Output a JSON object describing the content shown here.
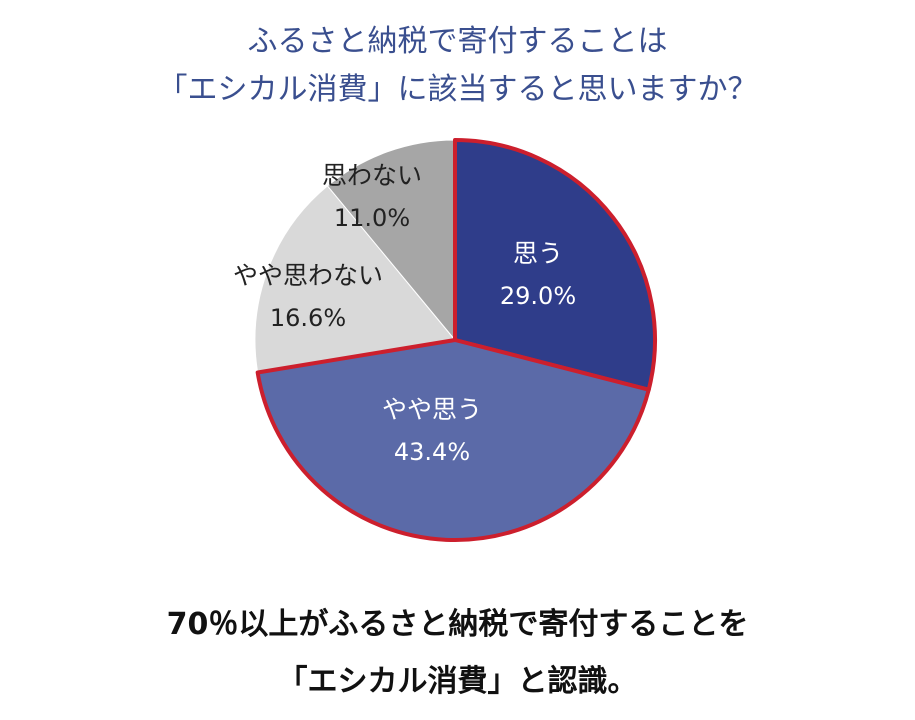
{
  "title": {
    "line1": "ふるさと納税で寄付することは",
    "line2": "「エシカル消費」に該当すると思いますか？"
  },
  "chart_data": {
    "type": "pie",
    "slices": [
      {
        "label": "思う",
        "value": 29.0,
        "value_label": "29.0%",
        "color": "#2f3d8a",
        "highlighted": true
      },
      {
        "label": "やや思う",
        "value": 43.4,
        "value_label": "43.4%",
        "color": "#5b6aa8",
        "highlighted": true
      },
      {
        "label": "やや思わない",
        "value": 16.6,
        "value_label": "16.6%",
        "color": "#d9d9d9",
        "highlighted": false
      },
      {
        "label": "思わない",
        "value": 11.0,
        "value_label": "11.0%",
        "color": "#a6a6a6",
        "highlighted": false
      }
    ],
    "highlight_color": "#cc1f2d"
  },
  "conclusion": {
    "line1": "70％以上がふるさと納税で寄付することを",
    "line2": "「エシカル消費」と認識。"
  }
}
